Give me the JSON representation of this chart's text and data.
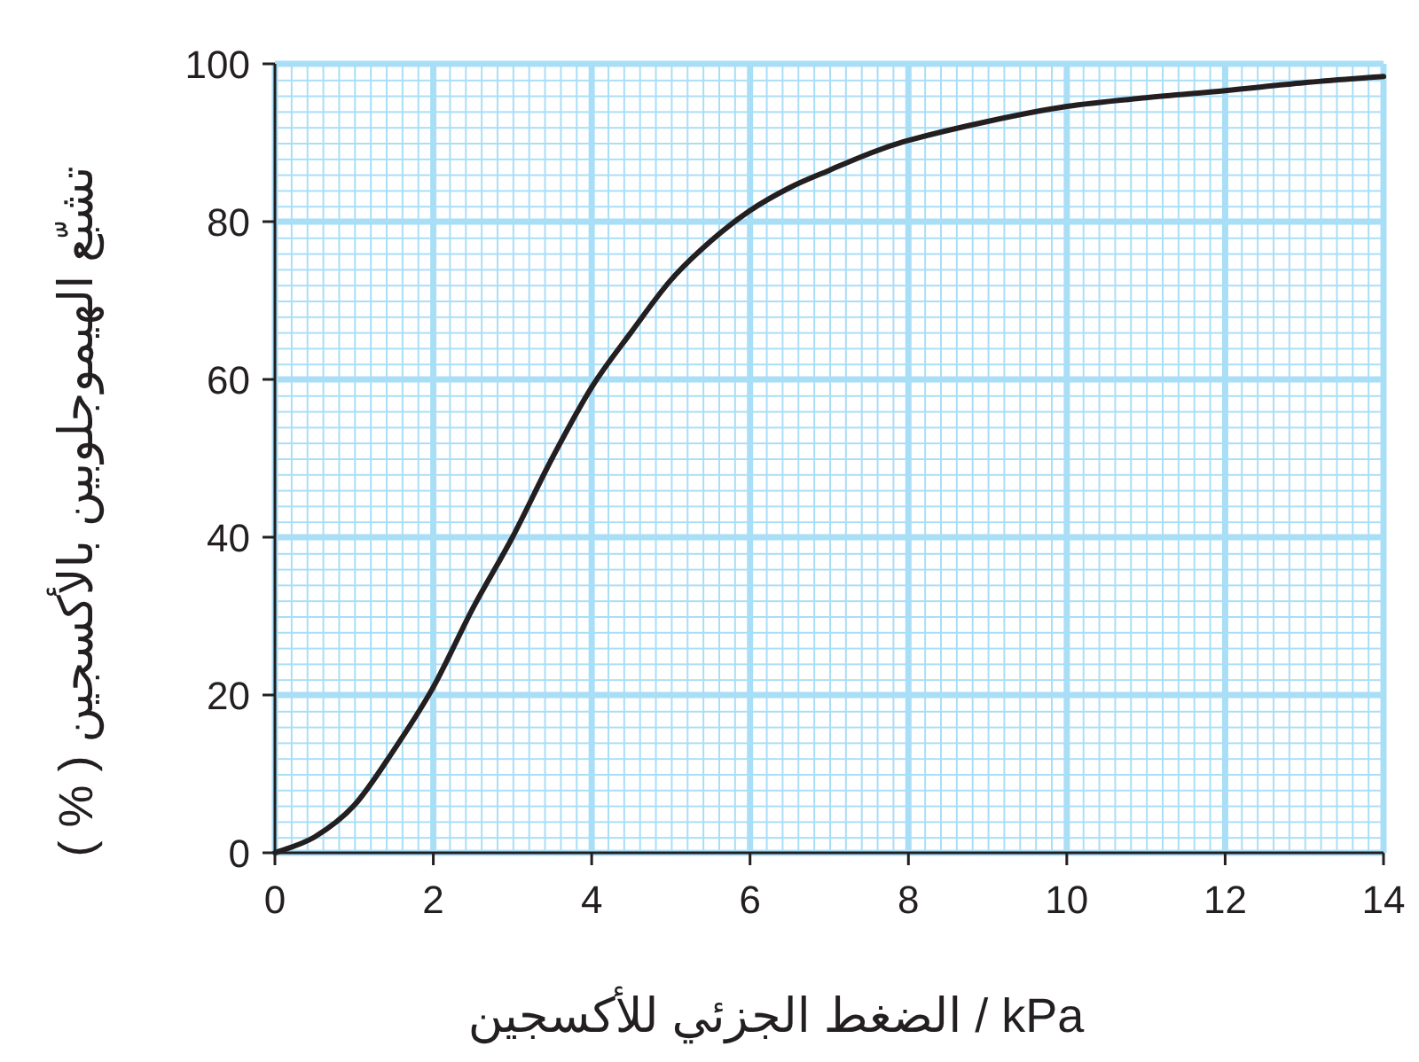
{
  "chart_data": {
    "type": "line",
    "xlabel": "الضغط الجزئي للأكسجين / kPa",
    "ylabel": "تشبّع الهيموجلوبين بالأكسجين ( % )",
    "series": [
      {
        "color": "#231f20",
        "x": [
          0,
          0.5,
          1,
          1.5,
          2,
          2.5,
          3,
          3.5,
          4,
          4.5,
          5,
          5.5,
          6,
          6.5,
          7,
          7.5,
          8,
          9,
          10,
          11,
          12,
          13,
          14
        ],
        "values": [
          0,
          2,
          6,
          13,
          21,
          31,
          40,
          50,
          59,
          66,
          72.6,
          77.5,
          81.4,
          84.3,
          86.5,
          88.6,
          90.3,
          92.7,
          94.6,
          95.7,
          96.6,
          97.6,
          98.4
        ]
      }
    ],
    "xlim": [
      0,
      14
    ],
    "xticks": [
      0,
      2,
      4,
      6,
      8,
      10,
      12,
      14
    ],
    "ylim": [
      0,
      100
    ],
    "yticks": [
      0,
      20,
      40,
      60,
      80,
      100
    ],
    "grid": true,
    "marker": "none",
    "line_style": "solid"
  }
}
